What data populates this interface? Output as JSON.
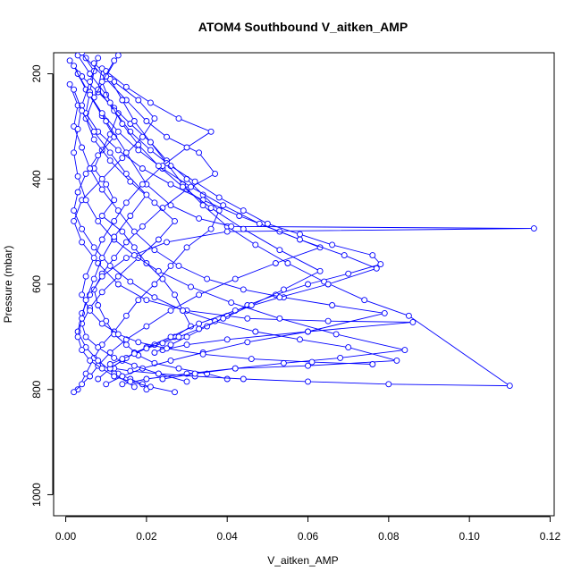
{
  "chart_data": {
    "type": "line",
    "title": "ATOM4 Southbound V_aitken_AMP",
    "xlabel": "V_aitken_AMP",
    "ylabel": "Pressure (mbar)",
    "xlim": [
      -0.003,
      0.121
    ],
    "ylim": [
      1040,
      160
    ],
    "y_reversed": true,
    "x_ticks": [
      0.0,
      0.02,
      0.04,
      0.06,
      0.08,
      0.1,
      0.12
    ],
    "x_tick_labels": [
      "0.00",
      "0.02",
      "0.04",
      "0.06",
      "0.08",
      "0.10",
      "0.12"
    ],
    "y_ticks": [
      200,
      400,
      600,
      800,
      1000
    ],
    "y_tick_labels": [
      "200",
      "400",
      "600",
      "800",
      "1000"
    ],
    "color": "#0000ff",
    "marker": "open-circle",
    "grid": false,
    "series": [
      {
        "values_x": [
          0.003,
          0.006,
          0.01,
          0.013,
          0.011,
          0.009,
          0.007,
          0.01,
          0.012,
          0.009,
          0.014,
          0.017,
          0.02,
          0.024,
          0.027,
          0.029,
          0.031,
          0.027,
          0.022,
          0.017,
          0.014,
          0.011,
          0.013,
          0.016,
          0.019,
          0.02
        ],
        "values_y": [
          165,
          200,
          240,
          275,
          315,
          345,
          380,
          410,
          440,
          470,
          500,
          530,
          560,
          590,
          620,
          650,
          680,
          700,
          715,
          730,
          745,
          760,
          770,
          780,
          790,
          800
        ]
      },
      {
        "values_x": [
          0.001,
          0.004,
          0.008,
          0.012,
          0.016,
          0.021,
          0.025,
          0.03,
          0.034,
          0.038,
          0.036,
          0.03,
          0.026,
          0.022,
          0.018,
          0.015,
          0.012,
          0.009,
          0.007,
          0.005,
          0.003
        ],
        "values_y": [
          175,
          205,
          235,
          265,
          295,
          330,
          365,
          400,
          430,
          460,
          495,
          530,
          565,
          600,
          630,
          660,
          690,
          715,
          740,
          770,
          800
        ]
      },
      {
        "values_x": [
          0.005,
          0.01,
          0.015,
          0.02,
          0.025,
          0.033,
          0.037,
          0.03,
          0.024,
          0.019,
          0.015,
          0.012,
          0.009,
          0.007,
          0.008,
          0.01,
          0.012,
          0.015,
          0.018,
          0.022,
          0.028,
          0.035,
          0.04
        ],
        "values_y": [
          170,
          210,
          250,
          290,
          320,
          350,
          390,
          420,
          455,
          490,
          520,
          550,
          580,
          610,
          640,
          670,
          695,
          715,
          735,
          750,
          760,
          770,
          780
        ]
      },
      {
        "values_x": [
          0.007,
          0.012,
          0.018,
          0.022,
          0.019,
          0.014,
          0.009,
          0.004,
          0.002,
          0.004,
          0.008,
          0.013,
          0.02,
          0.03,
          0.045,
          0.065,
          0.086,
          0.06,
          0.04,
          0.03,
          0.024
        ],
        "values_y": [
          180,
          215,
          250,
          285,
          320,
          360,
          400,
          440,
          480,
          520,
          560,
          600,
          630,
          650,
          665,
          670,
          672,
          690,
          705,
          715,
          725
        ]
      },
      {
        "values_x": [
          0.009,
          0.008,
          0.012,
          0.016,
          0.021,
          0.026,
          0.032,
          0.038,
          0.044,
          0.05,
          0.058,
          0.066,
          0.076,
          0.078,
          0.07,
          0.06,
          0.052,
          0.045,
          0.04,
          0.035,
          0.03,
          0.026,
          0.022
        ],
        "values_y": [
          190,
          230,
          270,
          310,
          345,
          375,
          405,
          435,
          460,
          485,
          505,
          525,
          545,
          562,
          580,
          600,
          620,
          640,
          660,
          680,
          700,
          715,
          730
        ]
      },
      {
        "values_x": [
          0.003,
          0.006,
          0.009,
          0.012,
          0.008,
          0.005,
          0.003,
          0.002,
          0.004,
          0.007,
          0.011,
          0.016,
          0.022,
          0.029,
          0.037,
          0.047,
          0.058,
          0.07,
          0.082,
          0.06,
          0.042,
          0.03,
          0.02,
          0.014
        ],
        "values_y": [
          200,
          240,
          280,
          320,
          355,
          390,
          425,
          460,
          495,
          530,
          565,
          595,
          625,
          650,
          670,
          690,
          705,
          720,
          745,
          755,
          760,
          770,
          780,
          790
        ]
      },
      {
        "values_x": [
          0.011,
          0.014,
          0.017,
          0.021,
          0.025,
          0.029,
          0.034,
          0.04,
          0.047,
          0.055,
          0.064,
          0.074,
          0.085,
          0.11,
          0.08,
          0.06,
          0.044,
          0.032,
          0.023,
          0.016,
          0.012
        ],
        "values_y": [
          210,
          250,
          290,
          330,
          370,
          410,
          450,
          490,
          525,
          560,
          595,
          630,
          660,
          793,
          790,
          785,
          780,
          775,
          770,
          765,
          760
        ]
      },
      {
        "values_x": [
          0.002,
          0.005,
          0.01,
          0.015,
          0.02,
          0.026,
          0.033,
          0.041,
          0.116,
          0.04,
          0.025,
          0.015,
          0.009,
          0.006,
          0.004,
          0.003,
          0.005,
          0.008,
          0.012,
          0.017
        ],
        "values_y": [
          185,
          230,
          290,
          350,
          410,
          450,
          475,
          490,
          494,
          500,
          520,
          550,
          585,
          620,
          655,
          690,
          720,
          745,
          770,
          795
        ]
      },
      {
        "values_x": [
          0.004,
          0.007,
          0.006,
          0.005,
          0.008,
          0.013,
          0.019,
          0.026,
          0.034,
          0.043,
          0.053,
          0.063,
          0.052,
          0.042,
          0.033,
          0.026,
          0.02,
          0.015,
          0.011,
          0.008,
          0.006,
          0.004,
          0.002
        ],
        "values_y": [
          160,
          195,
          235,
          275,
          310,
          345,
          380,
          410,
          440,
          470,
          500,
          530,
          560,
          590,
          620,
          650,
          680,
          705,
          730,
          755,
          775,
          790,
          805
        ]
      },
      {
        "values_x": [
          0.001,
          0.003,
          0.002,
          0.004,
          0.006,
          0.009,
          0.013,
          0.017,
          0.022,
          0.028,
          0.035,
          0.044,
          0.054,
          0.066,
          0.079,
          0.06,
          0.045,
          0.034,
          0.026,
          0.019,
          0.014,
          0.01
        ],
        "values_y": [
          220,
          260,
          300,
          340,
          380,
          420,
          460,
          500,
          535,
          565,
          590,
          610,
          625,
          640,
          655,
          690,
          710,
          730,
          745,
          760,
          775,
          790
        ]
      },
      {
        "values_x": [
          0.013,
          0.01,
          0.007,
          0.005,
          0.007,
          0.011,
          0.016,
          0.022,
          0.027,
          0.023,
          0.018,
          0.013,
          0.009,
          0.006,
          0.004,
          0.005,
          0.008,
          0.012,
          0.017,
          0.023,
          0.03
        ],
        "values_y": [
          165,
          205,
          245,
          285,
          325,
          365,
          405,
          445,
          480,
          515,
          550,
          585,
          615,
          645,
          675,
          700,
          720,
          740,
          755,
          770,
          785
        ]
      },
      {
        "values_x": [
          0.006,
          0.009,
          0.013,
          0.018,
          0.024,
          0.031,
          0.039,
          0.048,
          0.058,
          0.069,
          0.077,
          0.065,
          0.053,
          0.042,
          0.033,
          0.026,
          0.02,
          0.015,
          0.011,
          0.008
        ],
        "values_y": [
          240,
          275,
          310,
          345,
          380,
          415,
          450,
          485,
          515,
          545,
          570,
          600,
          625,
          650,
          675,
          700,
          720,
          740,
          760,
          780
        ]
      },
      {
        "values_x": [
          0.008,
          0.006,
          0.004,
          0.003,
          0.002,
          0.003,
          0.005,
          0.008,
          0.012,
          0.017,
          0.023,
          0.031,
          0.041,
          0.053,
          0.067,
          0.084,
          0.068,
          0.054,
          0.042,
          0.032,
          0.024
        ],
        "values_y": [
          170,
          215,
          260,
          305,
          350,
          395,
          440,
          480,
          515,
          545,
          575,
          605,
          635,
          665,
          695,
          725,
          740,
          750,
          760,
          770,
          780
        ]
      },
      {
        "values_x": [
          0.01,
          0.015,
          0.021,
          0.028,
          0.036,
          0.03,
          0.024,
          0.019,
          0.015,
          0.012,
          0.009,
          0.007,
          0.005,
          0.004,
          0.006,
          0.009,
          0.013,
          0.018,
          0.025,
          0.034,
          0.046,
          0.061,
          0.076
        ],
        "values_y": [
          195,
          225,
          255,
          285,
          310,
          340,
          375,
          410,
          445,
          480,
          515,
          550,
          585,
          620,
          650,
          675,
          695,
          710,
          722,
          733,
          742,
          748,
          752
        ]
      },
      {
        "values_x": [
          0.002,
          0.004,
          0.007,
          0.011,
          0.015,
          0.02,
          0.016,
          0.012,
          0.009,
          0.007,
          0.005,
          0.004,
          0.003,
          0.004,
          0.006,
          0.009,
          0.012,
          0.016,
          0.021,
          0.027
        ],
        "values_y": [
          230,
          270,
          310,
          350,
          390,
          430,
          470,
          510,
          550,
          590,
          630,
          665,
          700,
          725,
          745,
          760,
          775,
          785,
          795,
          805
        ]
      },
      {
        "values_x": [
          0.012,
          0.009,
          0.011,
          0.014,
          0.018,
          0.023,
          0.029,
          0.036,
          0.044,
          0.053,
          0.063,
          0.054,
          0.046,
          0.039,
          0.033,
          0.028,
          0.024,
          0.02,
          0.017,
          0.014,
          0.011
        ],
        "values_y": [
          175,
          215,
          255,
          295,
          335,
          375,
          415,
          455,
          495,
          535,
          575,
          610,
          640,
          665,
          685,
          700,
          712,
          722,
          732,
          742,
          752
        ]
      }
    ]
  }
}
